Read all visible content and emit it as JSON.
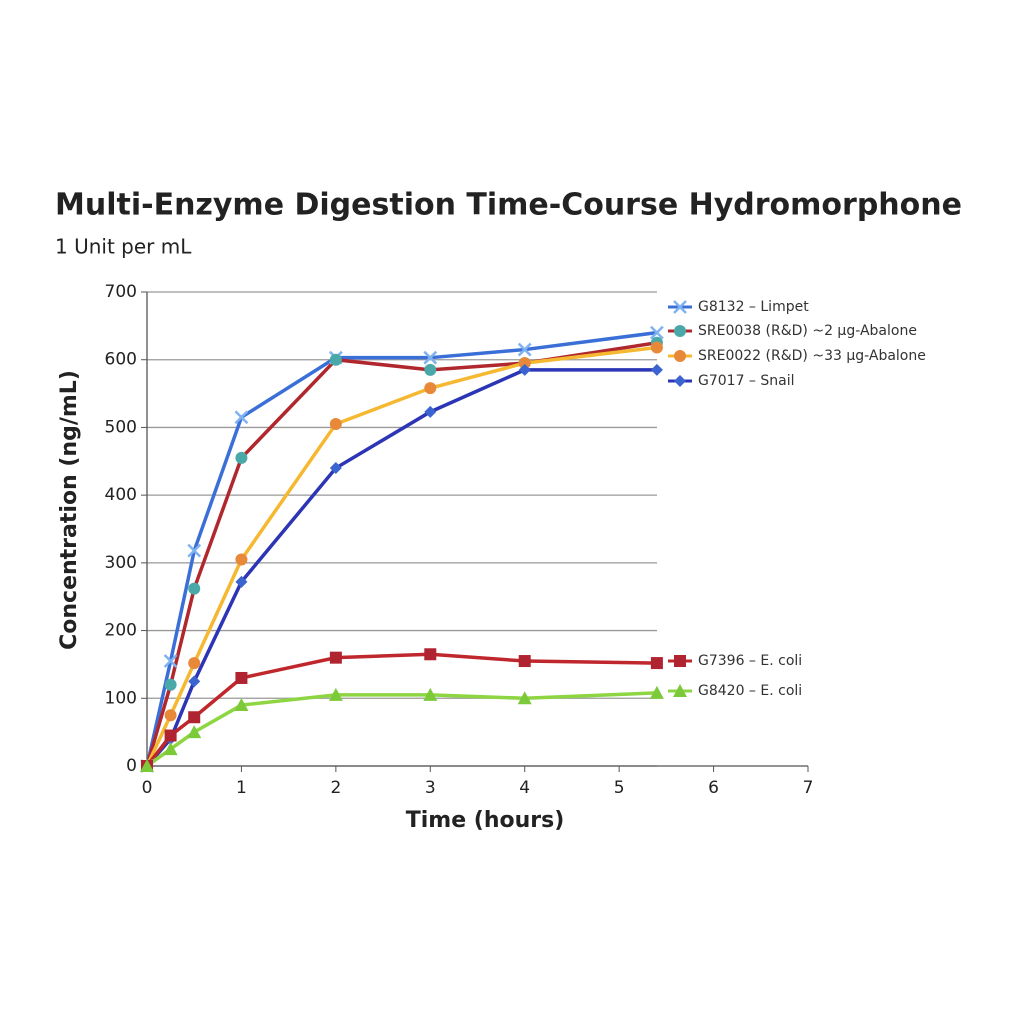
{
  "chart_data": {
    "type": "line",
    "title": "Multi-Enzyme Digestion Time-Course Hydromorphone",
    "subtitle": "1 Unit per mL",
    "x_label": "Time (hours)",
    "y_label": "Concentration (ng/mL)",
    "x": [
      0,
      0.25,
      0.5,
      1,
      2,
      3,
      4,
      5.4
    ],
    "xlim": [
      0,
      7
    ],
    "xticks": [
      0,
      1,
      2,
      3,
      4,
      5,
      6,
      7
    ],
    "ylim": [
      0,
      700
    ],
    "yticks": [
      0,
      100,
      200,
      300,
      400,
      500,
      600,
      700
    ],
    "grid": true,
    "series": [
      {
        "name": "G8132 – Limpet",
        "color": "#3a6fd8",
        "marker_color": "#7fb2f0",
        "marker": "x",
        "values": [
          0,
          155,
          318,
          515,
          603,
          603,
          615,
          640
        ]
      },
      {
        "name": "SRE0038 (R&D) ~2 µg-Abalone",
        "color": "#b0282d",
        "marker_color": "#4aa9a8",
        "marker": "circle",
        "values": [
          0,
          120,
          262,
          455,
          600,
          585,
          595,
          625
        ]
      },
      {
        "name": "SRE0022 (R&D) ~33 µg-Abalone",
        "color": "#f5b830",
        "marker_color": "#e8893a",
        "marker": "circle",
        "values": [
          0,
          75,
          152,
          305,
          505,
          558,
          595,
          618
        ]
      },
      {
        "name": "G7017 – Snail",
        "color": "#2b35b5",
        "marker_color": "#3c64d0",
        "marker": "diamond",
        "values": [
          0,
          40,
          125,
          272,
          440,
          523,
          585,
          585
        ]
      },
      {
        "name": "G7396 – E. coli",
        "color": "#c0272d",
        "marker_color": "#b02330",
        "marker": "square",
        "values": [
          0,
          45,
          72,
          130,
          160,
          165,
          155,
          152
        ]
      },
      {
        "name": "G8420 – E. coli",
        "color": "#8dd642",
        "marker_color": "#7cc93a",
        "marker": "triangle",
        "values": [
          0,
          25,
          50,
          90,
          105,
          105,
          100,
          108
        ]
      }
    ]
  }
}
